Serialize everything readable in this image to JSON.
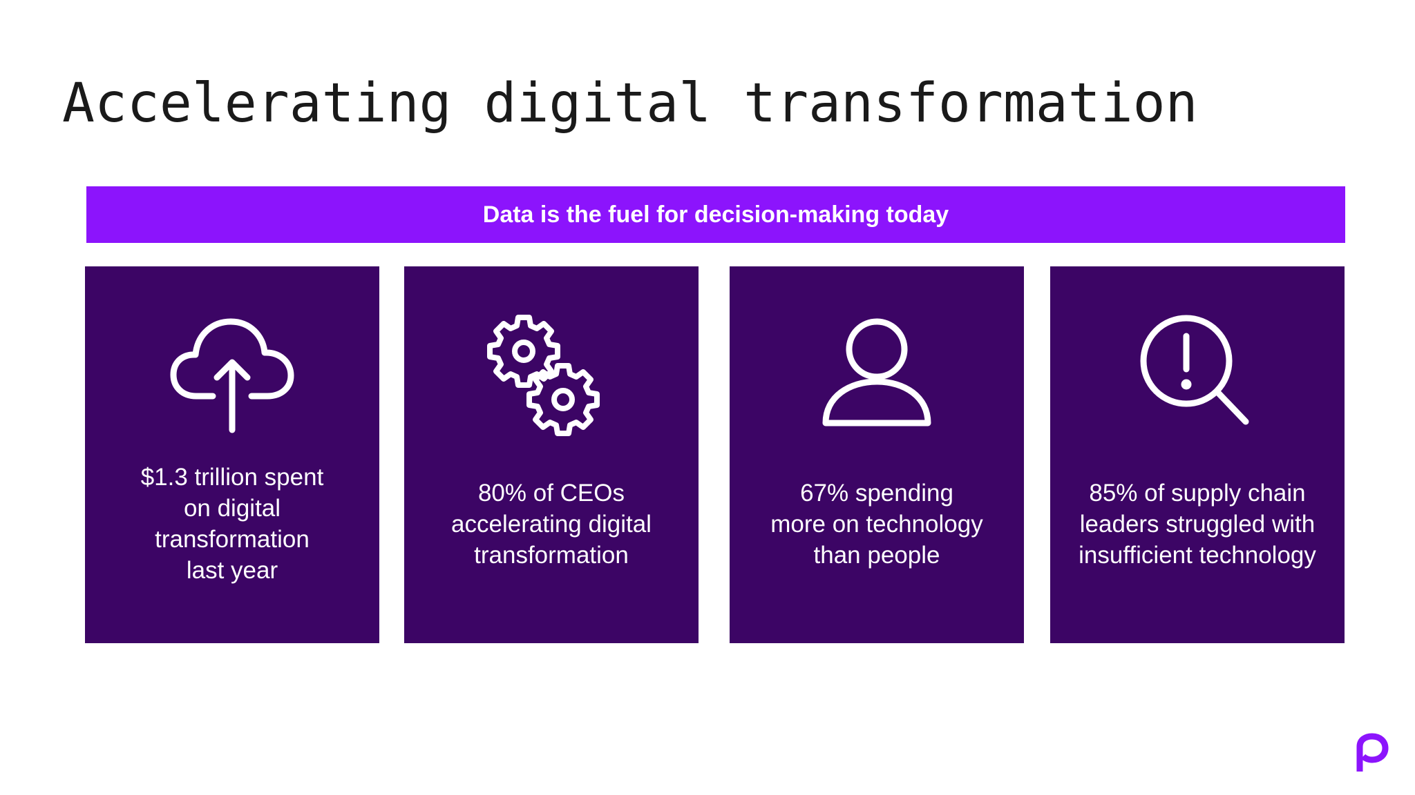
{
  "title": "Accelerating digital transformation",
  "banner": {
    "text": "Data is the fuel for decision-making today"
  },
  "cards": [
    {
      "icon": "cloud-upload-icon",
      "lines": [
        "$1.3 trillion spent",
        "on digital",
        "transformation",
        "last year"
      ]
    },
    {
      "icon": "gears-icon",
      "lines": [
        "80% of CEOs",
        "accelerating digital",
        "transformation"
      ]
    },
    {
      "icon": "person-icon",
      "lines": [
        "67% spending",
        "more on technology",
        "than people"
      ]
    },
    {
      "icon": "magnifier-exclamation-icon",
      "lines": [
        "85% of supply chain",
        "leaders struggled with",
        "insufficient technology"
      ]
    }
  ],
  "logo": {
    "icon": "brand-logo-icon"
  },
  "colors": {
    "banner": "#8c14fc",
    "card": "#3c0565",
    "logo": "#8c14fc",
    "title": "#1a1a1a"
  }
}
